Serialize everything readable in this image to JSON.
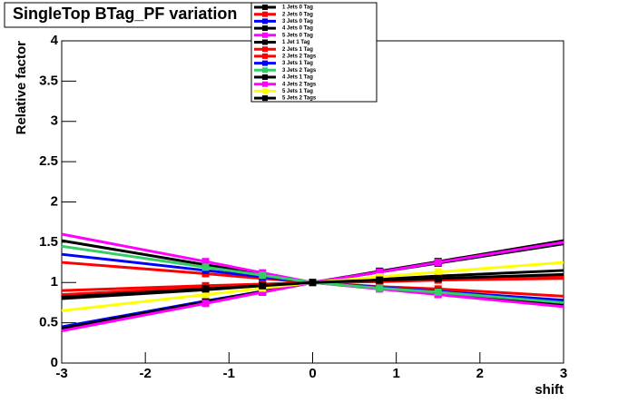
{
  "chart_data": {
    "type": "line",
    "title": "SingleTop BTag_PF variation",
    "x_label": "shift",
    "y_label": "Relative factor",
    "x": [
      -3,
      -1.28,
      -0.6,
      0,
      0.8,
      1.5,
      3
    ],
    "xlim": [
      -3,
      3
    ],
    "xticks": [
      -3,
      -2,
      -1,
      0,
      1,
      2,
      3
    ],
    "ylim": [
      0,
      4
    ],
    "yticks": [
      0,
      0.5,
      1,
      1.5,
      2,
      2.5,
      3,
      3.5,
      4
    ],
    "grid": false,
    "legend": "top",
    "series": [
      {
        "name": "1 Jets 0 Tag",
        "color": "#000000",
        "values": [
          0.8,
          0.91,
          0.96,
          1,
          1.04,
          1.08,
          1.15
        ]
      },
      {
        "name": "2 Jets 0 Tag",
        "color": "#ff0000",
        "values": [
          1.25,
          1.11,
          1.05,
          1,
          0.95,
          0.92,
          0.83
        ]
      },
      {
        "name": "3 Jets 0 Tag",
        "color": "#0000ff",
        "values": [
          1.35,
          1.15,
          1.07,
          1,
          0.94,
          0.89,
          0.78
        ]
      },
      {
        "name": "4 Jets 0 Tag",
        "color": "#000000",
        "values": [
          1.52,
          1.22,
          1.1,
          1,
          0.93,
          0.86,
          0.72
        ]
      },
      {
        "name": "5 Jets 0 Tag",
        "color": "#ff00ff",
        "values": [
          1.6,
          1.26,
          1.12,
          1,
          0.92,
          0.85,
          0.7
        ]
      },
      {
        "name": "1 Jet  1 Tag",
        "color": "#000000",
        "values": [
          0.42,
          0.75,
          0.88,
          1,
          1.13,
          1.24,
          1.48
        ]
      },
      {
        "name": "2 Jets 1 Tag",
        "color": "#ff0000",
        "values": [
          0.9,
          0.96,
          0.98,
          1,
          1.01,
          1.03,
          1.05
        ]
      },
      {
        "name": "2 Jets 2 Tags",
        "color": "#ff0000",
        "values": [
          0.85,
          0.94,
          0.97,
          1,
          1.02,
          1.04,
          1.08
        ]
      },
      {
        "name": "3 Jets 1 Tag",
        "color": "#0000ff",
        "values": [
          0.45,
          0.77,
          0.89,
          1,
          1.13,
          1.25,
          1.5
        ]
      },
      {
        "name": "3 Jets 2 Tags",
        "color": "#33cc66",
        "values": [
          1.45,
          1.19,
          1.09,
          1,
          0.93,
          0.88,
          0.75
        ]
      },
      {
        "name": "4 Jets 1 Tag",
        "color": "#000000",
        "values": [
          0.43,
          0.76,
          0.89,
          1,
          1.14,
          1.26,
          1.52
        ]
      },
      {
        "name": "4 Jets 2 Tags",
        "color": "#ff00ff",
        "values": [
          0.4,
          0.74,
          0.88,
          1,
          1.13,
          1.25,
          1.5
        ]
      },
      {
        "name": "5 Jets 1 Tag",
        "color": "#ffff00",
        "values": [
          0.65,
          0.85,
          0.93,
          1,
          1.07,
          1.13,
          1.25
        ]
      },
      {
        "name": "5 Jets 2 Tags",
        "color": "#000000",
        "values": [
          0.82,
          0.92,
          0.96,
          1,
          1.03,
          1.05,
          1.1
        ]
      }
    ]
  }
}
